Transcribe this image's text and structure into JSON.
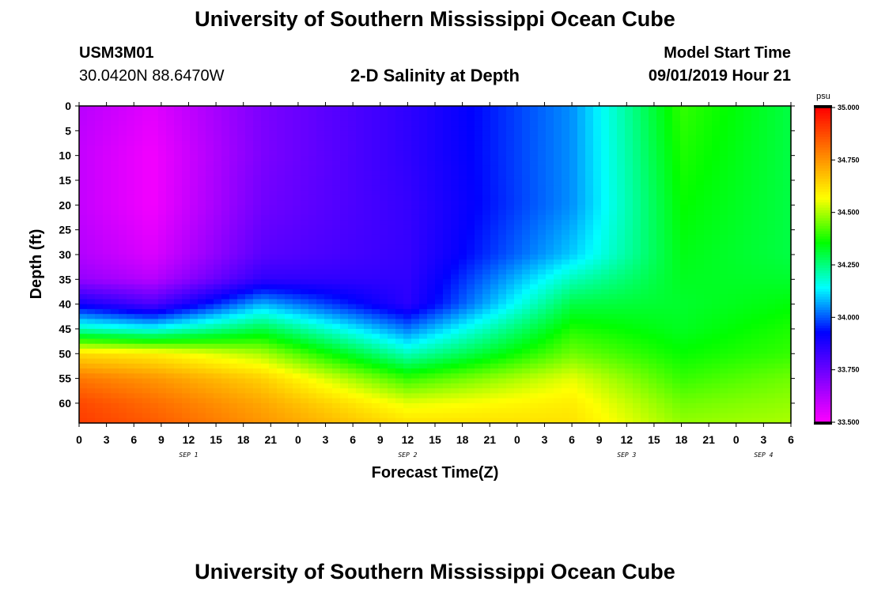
{
  "header": {
    "title": "University of Southern Mississippi Ocean Cube",
    "station_id": "USM3M01",
    "coordinates": "30.0420N 88.6470W",
    "plot_title": "2-D Salinity at Depth",
    "start_label": "Model Start Time",
    "start_value": "09/01/2019 Hour 21"
  },
  "footer": {
    "title": "University of Southern Mississippi Ocean Cube"
  },
  "chart_data": {
    "type": "heatmap",
    "title": "2-D Salinity at Depth",
    "xlabel": "Forecast Time(Z)",
    "ylabel": "Depth (ft)",
    "x_tick_labels": [
      "0",
      "3",
      "6",
      "9",
      "12",
      "15",
      "18",
      "21",
      "0",
      "3",
      "6",
      "9",
      "12",
      "15",
      "18",
      "21",
      "0",
      "3",
      "6",
      "9",
      "12",
      "15",
      "18",
      "21",
      "0",
      "3",
      "6"
    ],
    "x_hours_range": [
      0,
      78
    ],
    "date_labels": [
      {
        "label": "SEP 1",
        "hour": 12
      },
      {
        "label": "SEP 2",
        "hour": 36
      },
      {
        "label": "SEP 3",
        "hour": 60
      },
      {
        "label": "SEP 4",
        "hour": 75
      }
    ],
    "y_ticks": [
      0,
      5,
      10,
      15,
      20,
      25,
      30,
      35,
      40,
      45,
      50,
      55,
      60
    ],
    "ylim": [
      0,
      64
    ],
    "y_inverted": true,
    "colorbar": {
      "unit": "psu",
      "min": 33.5,
      "max": 35.0,
      "tick_values": [
        33.5,
        33.75,
        34.0,
        34.25,
        34.5,
        34.75,
        35.0
      ],
      "tick_labels": [
        "33.500",
        "33.750",
        "34.000",
        "34.250",
        "34.500",
        "34.750",
        "35.000"
      ],
      "colors": [
        "#ff00ff",
        "#8000ff",
        "#0000ff",
        "#00ffff",
        "#00ff00",
        "#ffff00",
        "#ff8000",
        "#ff0000"
      ]
    },
    "sample_profiles": [
      {
        "hour": 0,
        "depth_ft": [
          0,
          10,
          20,
          30,
          35,
          40,
          45,
          50,
          55,
          60,
          64
        ],
        "salinity_psu": [
          33.62,
          33.6,
          33.6,
          33.63,
          33.68,
          33.9,
          34.2,
          34.63,
          34.8,
          34.88,
          34.9
        ]
      },
      {
        "hour": 8,
        "depth_ft": [
          0,
          10,
          20,
          30,
          35,
          40,
          45,
          50,
          55,
          60,
          64
        ],
        "salinity_psu": [
          33.55,
          33.52,
          33.52,
          33.56,
          33.62,
          33.8,
          34.15,
          34.6,
          34.75,
          34.82,
          34.85
        ]
      },
      {
        "hour": 20,
        "depth_ft": [
          0,
          10,
          20,
          30,
          35,
          40,
          45,
          50,
          55,
          60,
          64
        ],
        "salinity_psu": [
          33.72,
          33.72,
          33.74,
          33.78,
          33.85,
          34.08,
          34.3,
          34.5,
          34.65,
          34.72,
          34.75
        ]
      },
      {
        "hour": 36,
        "depth_ft": [
          0,
          10,
          20,
          30,
          35,
          40,
          45,
          50,
          55,
          60,
          64
        ],
        "salinity_psu": [
          33.85,
          33.85,
          33.84,
          33.84,
          33.85,
          33.86,
          34.03,
          34.2,
          34.4,
          34.55,
          34.62
        ]
      },
      {
        "hour": 54,
        "depth_ft": [
          0,
          10,
          20,
          30,
          35,
          40,
          45,
          50,
          55,
          60,
          64
        ],
        "salinity_psu": [
          34.05,
          34.05,
          34.05,
          34.1,
          34.2,
          34.3,
          34.38,
          34.45,
          34.55,
          34.6,
          34.62
        ]
      },
      {
        "hour": 66,
        "depth_ft": [
          0,
          10,
          20,
          30,
          35,
          40,
          45,
          50,
          55,
          60,
          64
        ],
        "salinity_psu": [
          34.4,
          34.38,
          34.36,
          34.34,
          34.33,
          34.32,
          34.33,
          34.36,
          34.4,
          34.45,
          34.48
        ]
      },
      {
        "hour": 78,
        "depth_ft": [
          0,
          10,
          20,
          30,
          35,
          40,
          45,
          50,
          55,
          60,
          64
        ],
        "salinity_psu": [
          34.3,
          34.3,
          34.3,
          34.3,
          34.32,
          34.35,
          34.38,
          34.4,
          34.45,
          34.48,
          34.5
        ]
      }
    ]
  }
}
